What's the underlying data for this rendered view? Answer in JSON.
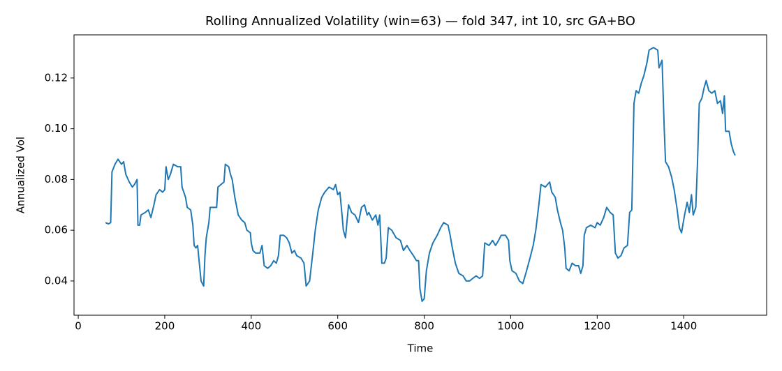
{
  "chart_data": {
    "type": "line",
    "title": "Rolling Annualized Volatility (win=63) — fold 347, int 10, src GA+BO",
    "x_label": "Time",
    "y_label": "Annualized Vol",
    "color": "#1f77b4",
    "xlim": [
      -9.8,
      1591.8
    ],
    "ylim": [
      0.0265,
      0.137
    ],
    "xticks": [
      0,
      200,
      400,
      600,
      800,
      1000,
      1200,
      1400
    ],
    "yticks": [
      0.04,
      0.06,
      0.08,
      {
        "value": 0.1,
        "label": "0.10"
      },
      0.12
    ],
    "x": [
      63,
      70,
      75,
      78,
      85,
      92,
      100,
      105,
      110,
      118,
      125,
      130,
      136,
      138,
      142,
      145,
      155,
      162,
      168,
      175,
      180,
      188,
      195,
      200,
      203,
      208,
      213,
      220,
      230,
      237,
      240,
      248,
      252,
      260,
      265,
      268,
      272,
      276,
      280,
      284,
      290,
      293,
      296,
      302,
      305,
      315,
      320,
      323,
      330,
      337,
      340,
      348,
      352,
      356,
      362,
      370,
      378,
      385,
      390,
      398,
      400,
      404,
      410,
      420,
      425,
      430,
      438,
      445,
      452,
      458,
      463,
      467,
      475,
      482,
      488,
      494,
      500,
      505,
      515,
      522,
      527,
      535,
      543,
      548,
      555,
      563,
      570,
      580,
      590,
      595,
      600,
      605,
      610,
      613,
      618,
      625,
      632,
      640,
      648,
      655,
      662,
      668,
      672,
      680,
      688,
      693,
      697,
      700,
      702,
      708,
      712,
      717,
      725,
      735,
      745,
      752,
      760,
      767,
      775,
      782,
      787,
      790,
      795,
      800,
      805,
      812,
      820,
      830,
      838,
      845,
      855,
      860,
      865,
      872,
      880,
      890,
      897,
      905,
      912,
      920,
      928,
      935,
      940,
      950,
      958,
      965,
      972,
      978,
      988,
      995,
      998,
      1003,
      1012,
      1020,
      1028,
      1035,
      1043,
      1052,
      1058,
      1065,
      1070,
      1080,
      1090,
      1095,
      1103,
      1108,
      1115,
      1120,
      1125,
      1128,
      1135,
      1142,
      1150,
      1157,
      1162,
      1167,
      1170,
      1175,
      1185,
      1195,
      1200,
      1207,
      1215,
      1222,
      1230,
      1237,
      1242,
      1248,
      1255,
      1262,
      1270,
      1275,
      1280,
      1285,
      1290,
      1296,
      1302,
      1308,
      1315,
      1320,
      1330,
      1340,
      1343,
      1350,
      1355,
      1358,
      1365,
      1372,
      1378,
      1385,
      1390,
      1395,
      1402,
      1408,
      1413,
      1418,
      1422,
      1428,
      1432,
      1436,
      1442,
      1447,
      1452,
      1458,
      1465,
      1472,
      1478,
      1485,
      1490,
      1494,
      1497,
      1505,
      1510,
      1515,
      1519
    ],
    "values": [
      0.063,
      0.0625,
      0.063,
      0.083,
      0.086,
      0.088,
      0.086,
      0.087,
      0.082,
      0.079,
      0.077,
      0.078,
      0.08,
      0.062,
      0.062,
      0.066,
      0.067,
      0.068,
      0.065,
      0.07,
      0.074,
      0.076,
      0.075,
      0.076,
      0.085,
      0.08,
      0.082,
      0.086,
      0.085,
      0.085,
      0.077,
      0.073,
      0.069,
      0.068,
      0.062,
      0.054,
      0.053,
      0.054,
      0.047,
      0.04,
      0.038,
      0.05,
      0.057,
      0.063,
      0.069,
      0.069,
      0.069,
      0.077,
      0.078,
      0.079,
      0.086,
      0.085,
      0.082,
      0.08,
      0.073,
      0.066,
      0.064,
      0.063,
      0.06,
      0.059,
      0.055,
      0.052,
      0.051,
      0.051,
      0.054,
      0.046,
      0.045,
      0.046,
      0.048,
      0.047,
      0.05,
      0.058,
      0.058,
      0.057,
      0.055,
      0.051,
      0.052,
      0.05,
      0.049,
      0.047,
      0.038,
      0.04,
      0.052,
      0.06,
      0.068,
      0.073,
      0.075,
      0.077,
      0.076,
      0.078,
      0.074,
      0.075,
      0.066,
      0.06,
      0.057,
      0.07,
      0.067,
      0.066,
      0.063,
      0.069,
      0.07,
      0.066,
      0.067,
      0.064,
      0.066,
      0.062,
      0.066,
      0.055,
      0.047,
      0.047,
      0.049,
      0.061,
      0.06,
      0.057,
      0.056,
      0.052,
      0.054,
      0.052,
      0.05,
      0.048,
      0.048,
      0.037,
      0.032,
      0.033,
      0.044,
      0.051,
      0.055,
      0.058,
      0.061,
      0.063,
      0.062,
      0.058,
      0.053,
      0.047,
      0.043,
      0.042,
      0.04,
      0.04,
      0.041,
      0.042,
      0.041,
      0.042,
      0.055,
      0.054,
      0.056,
      0.054,
      0.056,
      0.058,
      0.058,
      0.056,
      0.048,
      0.044,
      0.043,
      0.04,
      0.039,
      0.043,
      0.048,
      0.054,
      0.06,
      0.07,
      0.078,
      0.077,
      0.079,
      0.075,
      0.073,
      0.068,
      0.063,
      0.06,
      0.053,
      0.045,
      0.044,
      0.047,
      0.046,
      0.046,
      0.043,
      0.046,
      0.058,
      0.061,
      0.062,
      0.061,
      0.063,
      0.062,
      0.065,
      0.069,
      0.067,
      0.066,
      0.051,
      0.049,
      0.05,
      0.053,
      0.054,
      0.067,
      0.068,
      0.11,
      0.115,
      0.114,
      0.118,
      0.121,
      0.126,
      0.131,
      0.132,
      0.131,
      0.124,
      0.127,
      0.1,
      0.087,
      0.085,
      0.081,
      0.076,
      0.068,
      0.061,
      0.059,
      0.066,
      0.071,
      0.067,
      0.074,
      0.066,
      0.069,
      0.087,
      0.11,
      0.112,
      0.116,
      0.119,
      0.115,
      0.114,
      0.115,
      0.11,
      0.111,
      0.106,
      0.113,
      0.099,
      0.099,
      0.094,
      0.091,
      0.0895
    ]
  }
}
